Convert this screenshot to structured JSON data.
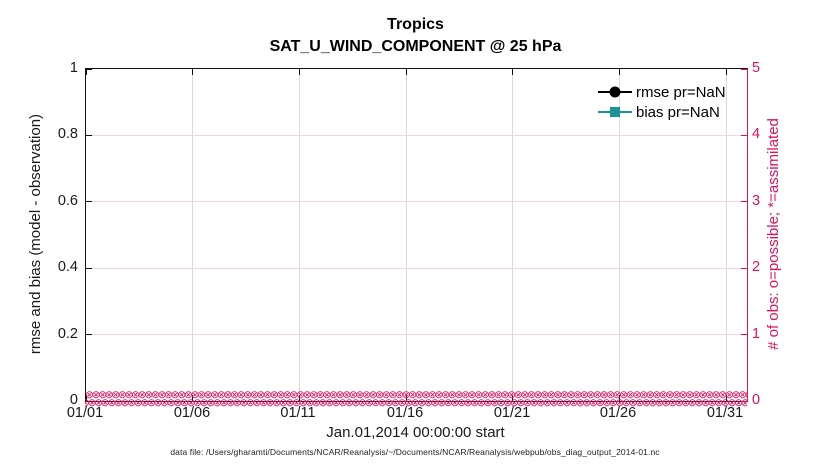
{
  "figure": {
    "title": "Tropics",
    "subtitle": "SAT_U_WIND_COMPONENT @ 25 hPa",
    "footer": "data file: /Users/gharamti/Documents/NCAR/Reanalysis/~/Documents/NCAR/Reanalysis/webpub/obs_diag_output_2014-01.nc"
  },
  "axes": {
    "left": {
      "label": "rmse and bias (model - observation)",
      "ticks": [
        "1",
        "0.8",
        "0.6",
        "0.4",
        "0.2",
        "0"
      ]
    },
    "right": {
      "label": "# of obs: o=possible; *=assimilated",
      "ticks": [
        "5",
        "4",
        "3",
        "2",
        "1",
        "0"
      ],
      "color": "#e0115f"
    },
    "x": {
      "label": "Jan.01,2014 00:00:00 start",
      "ticks": [
        "01/01",
        "01/06",
        "01/11",
        "01/16",
        "01/21",
        "01/26",
        "01/31"
      ]
    }
  },
  "legend": {
    "items": [
      {
        "label": "rmse pr=NaN",
        "color": "#000000",
        "marker": "circle"
      },
      {
        "label": "bias pr=NaN",
        "color": "#1a9394",
        "marker": "square"
      }
    ]
  },
  "obs_band": {
    "glyph": "⊗",
    "rows": 2,
    "per_row": 110,
    "color": "#e0115f",
    "note": "overlapping o (possible) and * (assimilated) markers, all at count 0 along the full month"
  },
  "colors": {
    "accent_pink": "#e0115f",
    "teal": "#1a9394",
    "grid_gray": "#d9d9d9",
    "grid_pink": "#f3d4e2"
  },
  "chart_data": {
    "type": "line",
    "title": "Tropics",
    "subtitle": "SAT_U_WIND_COMPONENT @ 25 hPa",
    "xlabel": "Jan.01,2014 00:00:00 start",
    "x_ticks": [
      "01/01",
      "01/06",
      "01/11",
      "01/16",
      "01/21",
      "01/26",
      "01/31"
    ],
    "x_range_days": [
      "01/01",
      "02/01"
    ],
    "y_left": {
      "label": "rmse and bias (model - observation)",
      "lim": [
        0,
        1
      ],
      "ticks": [
        0,
        0.2,
        0.4,
        0.6,
        0.8,
        1
      ]
    },
    "y_right": {
      "label": "# of obs: o=possible; *=assimilated",
      "lim": [
        0,
        5
      ],
      "ticks": [
        0,
        1,
        2,
        3,
        4,
        5
      ]
    },
    "grid": true,
    "legend_position": "upper-right-inside, no box",
    "series": [
      {
        "name": "rmse pr=NaN",
        "axis": "left",
        "color": "#000000",
        "marker": "circle",
        "values": "NaN - nothing plotted"
      },
      {
        "name": "bias pr=NaN",
        "axis": "left",
        "color": "#1a9394",
        "marker": "square",
        "values": "NaN - nothing plotted"
      },
      {
        "name": "possible obs (o)",
        "axis": "right",
        "color": "#e0115f",
        "marker": "o",
        "constant_value": 0
      },
      {
        "name": "assimilated obs (*)",
        "axis": "right",
        "color": "#e0115f",
        "marker": "*",
        "constant_value": 0
      }
    ]
  }
}
